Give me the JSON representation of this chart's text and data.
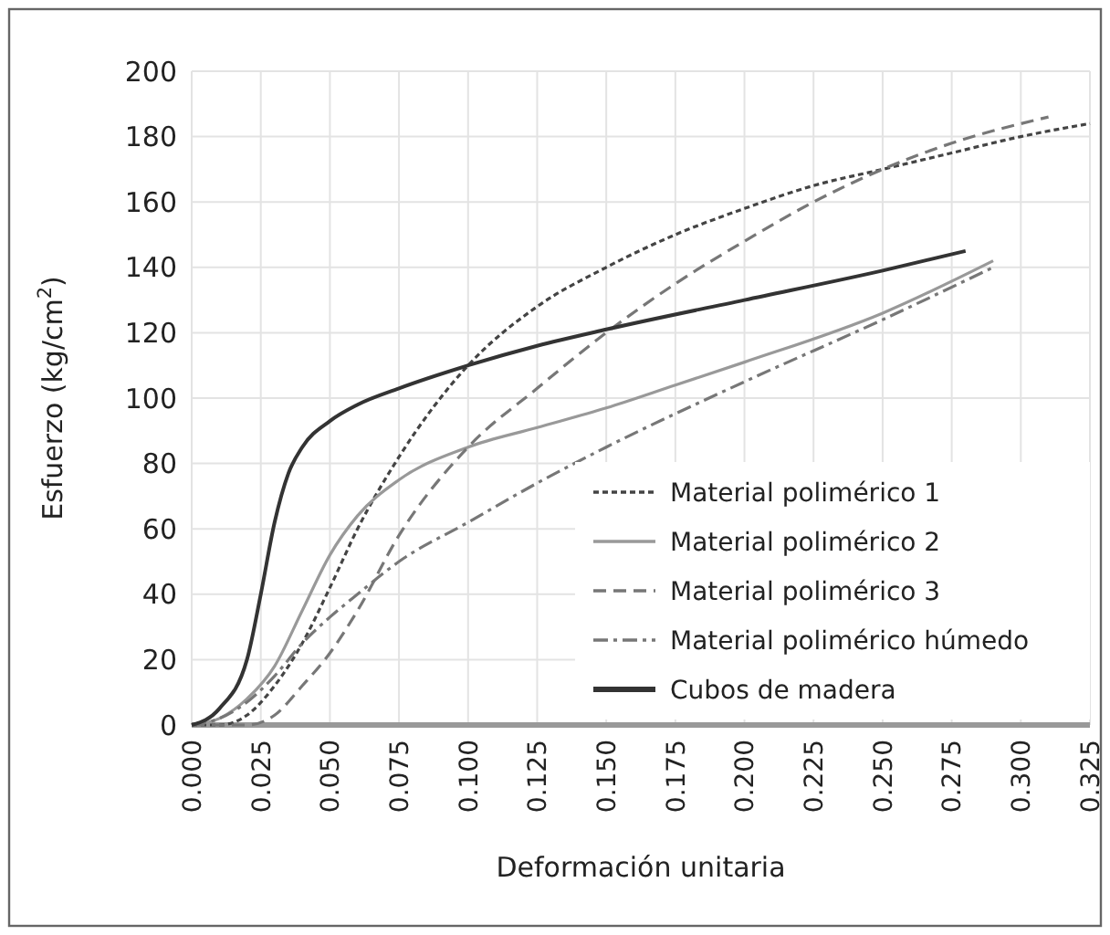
{
  "chart_data": {
    "type": "line",
    "xlabel": "Deformación unitaria",
    "ylabel": "Esfuerzo (kg/cm$^{2}$)",
    "xlim": [
      0,
      0.325
    ],
    "xticks": [
      {
        "value": 0,
        "label": "0.000"
      },
      {
        "value": 0.025,
        "label": "0.025"
      },
      {
        "value": 0.05,
        "label": "0.050"
      },
      {
        "value": 0.075,
        "label": "0.075"
      },
      {
        "value": 0.1,
        "label": "0.100"
      },
      {
        "value": 0.125,
        "label": "0.125"
      },
      {
        "value": 0.15,
        "label": "0.150"
      },
      {
        "value": 0.175,
        "label": "0.175"
      },
      {
        "value": 0.2,
        "label": "0.200"
      },
      {
        "value": 0.225,
        "label": "0.225"
      },
      {
        "value": 0.25,
        "label": "0.250"
      },
      {
        "value": 0.275,
        "label": "0.275"
      },
      {
        "value": 0.3,
        "label": "0.300"
      },
      {
        "value": 0.325,
        "label": "0.325"
      }
    ],
    "ylim": [
      0,
      200
    ],
    "yticks": [
      0,
      20,
      40,
      60,
      80,
      100,
      120,
      140,
      160,
      180,
      200
    ],
    "grid": true,
    "legend": "bottom right",
    "marker": "none",
    "series": [
      {
        "name": "Material polimérico 1",
        "color": "#444444",
        "line_style": "dotted",
        "x": [
          0,
          0.01,
          0.02,
          0.03,
          0.04,
          0.05,
          0.06,
          0.075,
          0.1,
          0.125,
          0.15,
          0.175,
          0.2,
          0.225,
          0.25,
          0.275,
          0.3,
          0.325
        ],
        "values": [
          0,
          0,
          3,
          12,
          25,
          42,
          60,
          82,
          110,
          128,
          140,
          150,
          158,
          165,
          170,
          175,
          180,
          184
        ]
      },
      {
        "name": "Material polimérico 2",
        "color": "#999999",
        "line_style": "solid",
        "x": [
          0,
          0.01,
          0.02,
          0.03,
          0.04,
          0.05,
          0.06,
          0.075,
          0.1,
          0.125,
          0.15,
          0.175,
          0.2,
          0.25,
          0.29
        ],
        "values": [
          0,
          2,
          8,
          18,
          35,
          52,
          64,
          75,
          85,
          91,
          97,
          104,
          111,
          126,
          142
        ]
      },
      {
        "name": "Material polimérico 3",
        "color": "#777777",
        "line_style": "dashed",
        "x": [
          0,
          0.02,
          0.03,
          0.04,
          0.05,
          0.06,
          0.075,
          0.1,
          0.125,
          0.15,
          0.175,
          0.2,
          0.225,
          0.25,
          0.275,
          0.31
        ],
        "values": [
          0,
          0,
          3,
          12,
          22,
          35,
          58,
          85,
          103,
          120,
          135,
          148,
          160,
          170,
          178,
          186
        ]
      },
      {
        "name": "Material polimérico húmedo",
        "color": "#777777",
        "line_style": "dashdot",
        "x": [
          0,
          0.01,
          0.02,
          0.03,
          0.04,
          0.05,
          0.06,
          0.075,
          0.1,
          0.125,
          0.15,
          0.2,
          0.25,
          0.29
        ],
        "values": [
          0,
          2,
          7,
          15,
          25,
          33,
          40,
          50,
          62,
          74,
          85,
          105,
          124,
          140
        ]
      },
      {
        "name": "Cubos de madera",
        "color": "#333333",
        "line_style": "solid",
        "x": [
          0,
          0.01,
          0.02,
          0.025,
          0.03,
          0.035,
          0.04,
          0.05,
          0.06,
          0.075,
          0.1,
          0.125,
          0.15,
          0.2,
          0.25,
          0.28
        ],
        "values": [
          0,
          5,
          20,
          40,
          62,
          77,
          85,
          93,
          98,
          103,
          110,
          116,
          121,
          130,
          139,
          145
        ]
      }
    ]
  }
}
